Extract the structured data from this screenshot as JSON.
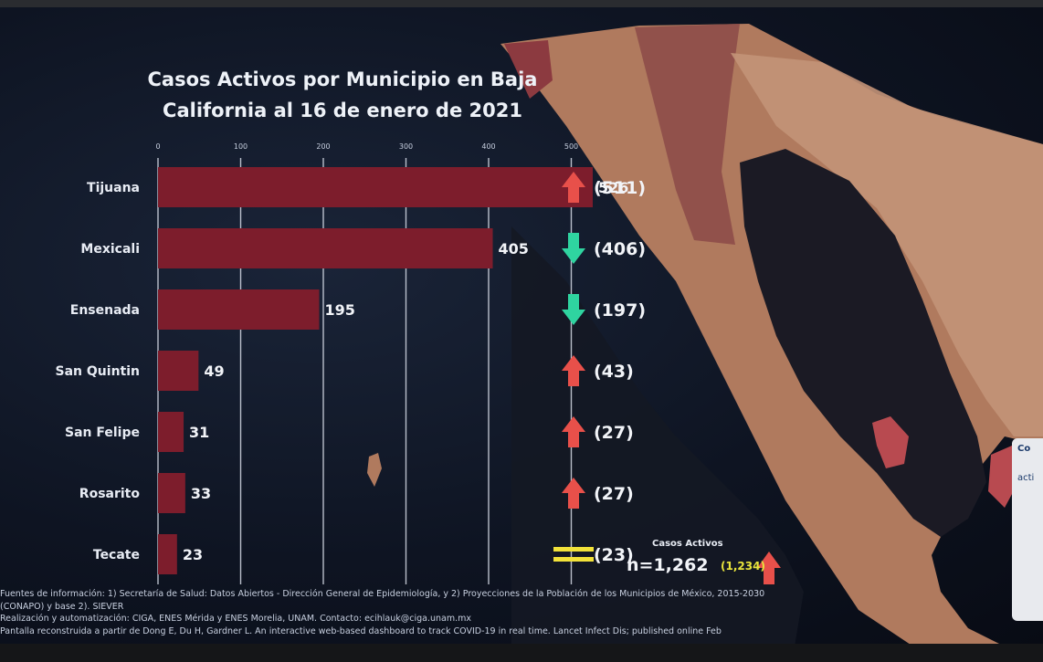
{
  "chart_data": {
    "type": "bar",
    "orientation": "horizontal",
    "title": "Casos Activos por Municipio en Baja California al 16 de enero de 2021",
    "title_lines": [
      "Casos Activos por Municipio en Baja",
      "California al 16 de enero de 2021"
    ],
    "categories": [
      "Tijuana",
      "Mexicali",
      "Ensenada",
      "San Quintin",
      "San Felipe",
      "Rosarito",
      "Tecate"
    ],
    "values": [
      526,
      405,
      195,
      49,
      31,
      33,
      23
    ],
    "value_labels": [
      "526",
      "405",
      "195",
      "49",
      "31",
      "33",
      "23"
    ],
    "previous_labels": [
      "(511)",
      "(406)",
      "(197)",
      "(43)",
      "(27)",
      "(27)",
      "(23)"
    ],
    "trend": [
      "up",
      "down",
      "down",
      "up",
      "up",
      "up",
      "equal"
    ],
    "xlim": [
      0,
      500
    ],
    "xticks": [
      0,
      100,
      200,
      300,
      400,
      500
    ],
    "xtick_labels": [
      "0",
      "100",
      "200",
      "300",
      "400",
      "500"
    ],
    "grid": true,
    "bar_color": "#7d1d2c",
    "colors": {
      "up": "#e8504a",
      "down": "#2fd4a0",
      "equal": "#f2e23a"
    },
    "summary": {
      "label": "Casos Activos",
      "total": "n=1,262",
      "previous": "(1,234)",
      "trend": "up"
    }
  },
  "sources": [
    "Fuentes de información: 1) Secretaría de Salud: Datos Abiertos - Dirección General de Epidemiología, y 2) Proyecciones de la Población de los Municipios de México, 2015-2030",
    "(CONAPO) y base 2). SIEVER",
    "Realización y automatización: CIGA, ENES Mérida y ENES Morelia, UNAM. Contacto: ecihlauk@ciga.unam.mx",
    "Pantalla reconstruida a partir de Dong E, Du H, Gardner L. An interactive web-based dashboard to track COVID-19 in real time. Lancet Infect Dis; published online Feb"
  ],
  "side_card": {
    "line1": "Co",
    "line2": "acti"
  },
  "colors": {
    "map_land": "#b07a5e",
    "map_dark": "#1b1a24",
    "map_hot": "#8c3a40"
  }
}
